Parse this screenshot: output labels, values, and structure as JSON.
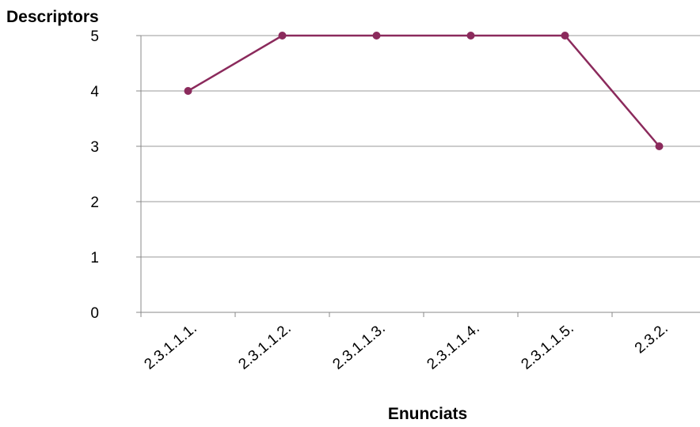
{
  "chart_data": {
    "type": "line",
    "title": "",
    "ylabel": "Descriptors",
    "xlabel": "Enunciats",
    "categories": [
      "2.3.1.1.1.",
      "2.3.1.1.2.",
      "2.3.1.1.3.",
      "2.3.1.1.4.",
      "2.3.1.1.5.",
      "2.3.2."
    ],
    "values": [
      4,
      5,
      5,
      5,
      5,
      3
    ],
    "ylim": [
      0,
      5
    ],
    "yticks": [
      0,
      1,
      2,
      3,
      4,
      5
    ],
    "grid": true,
    "legend": "none",
    "series_color": "#8b2a5c",
    "gridline_color": "#9a9a9a"
  }
}
